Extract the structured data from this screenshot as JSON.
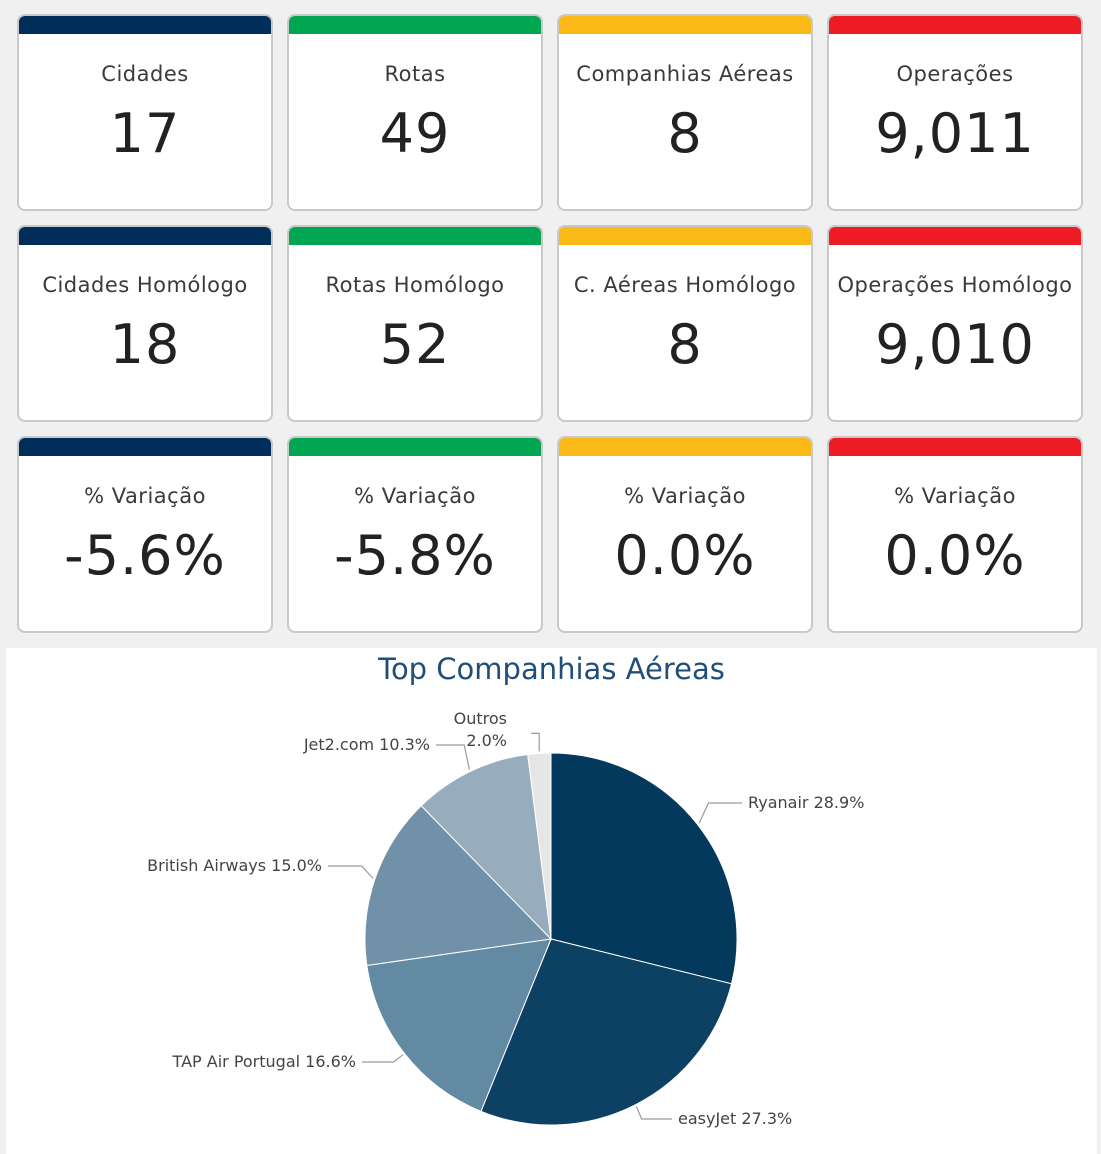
{
  "kpis": [
    [
      {
        "label": "Cidades",
        "value": "17",
        "color": "#002d5a"
      },
      {
        "label": "Rotas",
        "value": "49",
        "color": "#00a651"
      },
      {
        "label": "Companhias Aéreas",
        "value": "8",
        "color": "#fbb917"
      },
      {
        "label": "Operações",
        "value": "9,011",
        "color": "#ed1c24"
      }
    ],
    [
      {
        "label": "Cidades Homólogo",
        "value": "18",
        "color": "#002d5a"
      },
      {
        "label": "Rotas Homólogo",
        "value": "52",
        "color": "#00a651"
      },
      {
        "label": "C. Aéreas Homólogo",
        "value": "8",
        "color": "#fbb917"
      },
      {
        "label": "Operações Homólogo",
        "value": "9,010",
        "color": "#ed1c24"
      }
    ],
    [
      {
        "label": "% Variação",
        "value": "-5.6%",
        "color": "#002d5a"
      },
      {
        "label": "% Variação",
        "value": "-5.8%",
        "color": "#00a651"
      },
      {
        "label": "% Variação",
        "value": "0.0%",
        "color": "#fbb917"
      },
      {
        "label": "% Variação",
        "value": "0.0%",
        "color": "#ed1c24"
      }
    ]
  ],
  "chart_data": {
    "type": "pie",
    "title": "Top Companhias Aéreas",
    "categories": [
      "Ryanair",
      "easyJet",
      "TAP Air Portugal",
      "British Airways",
      "Jet2.com",
      "Outros"
    ],
    "values": [
      28.9,
      27.3,
      16.6,
      15.0,
      10.3,
      2.0
    ],
    "labels": [
      "Ryanair 28.9%",
      "easyJet 27.3%",
      "TAP Air Portugal 16.6%",
      "British Airways 15.0%",
      "Jet2.com 10.3%",
      "Outros 2.0%"
    ],
    "colors": [
      "#03395c",
      "#0d4164",
      "#638aa3",
      "#7091a7",
      "#97adbd",
      "#e6e6e6"
    ]
  }
}
